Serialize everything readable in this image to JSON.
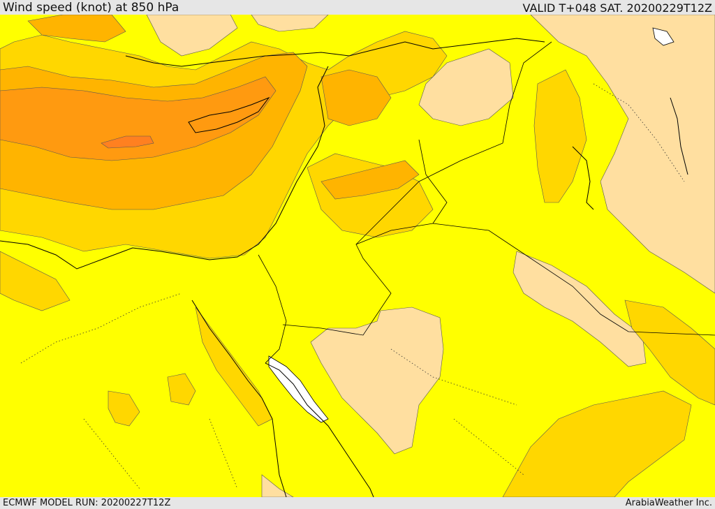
{
  "header": {
    "title": "Wind speed (knot) at 850 hPa",
    "valid": "VALID T+048 SAT. 20200229T12Z"
  },
  "footer": {
    "model_run": "ECMWF MODEL RUN: 20200227T12Z",
    "credit": "ArabiaWeather Inc."
  },
  "map": {
    "variable": "wind speed",
    "level": "850 hPa",
    "colors": {
      "background_band": "#ffff00",
      "light_band": "#ffdfa0",
      "gold_band": "#ffd700",
      "orange_band": "#ffb400",
      "deep_orange_band": "#ff9a10",
      "strongest_band": "#ff8020",
      "no_data": "#ffffff",
      "coastline": "#000000",
      "border": "#000000"
    }
  }
}
